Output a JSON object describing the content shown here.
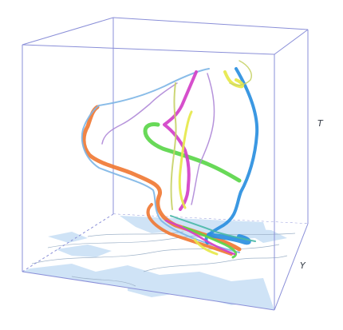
{
  "axes": {
    "t_label": "T",
    "y_label": "Y"
  },
  "colors": {
    "cube_edge": "#8a8fd8",
    "map_water": "#cfe3f6",
    "map_land": "#ffffff",
    "map_border": "#9fb3c9",
    "background": "#ffffff"
  },
  "trajectories": [
    {
      "name": "orange",
      "color": "#f07a35",
      "width": "thick"
    },
    {
      "name": "green",
      "color": "#5bd64a",
      "width": "thick"
    },
    {
      "name": "magenta",
      "color": "#d340c8",
      "width": "thick"
    },
    {
      "name": "yellow",
      "color": "#e6e84a",
      "width": "medium"
    },
    {
      "name": "blue",
      "color": "#2a8fe0",
      "width": "thick"
    },
    {
      "name": "light-blue",
      "color": "#7fb6e6",
      "width": "thin"
    },
    {
      "name": "violet",
      "color": "#b08ad8",
      "width": "thin"
    },
    {
      "name": "olive",
      "color": "#c8d26a",
      "width": "thin"
    },
    {
      "name": "teal",
      "color": "#4bb8a8",
      "width": "thin"
    }
  ]
}
